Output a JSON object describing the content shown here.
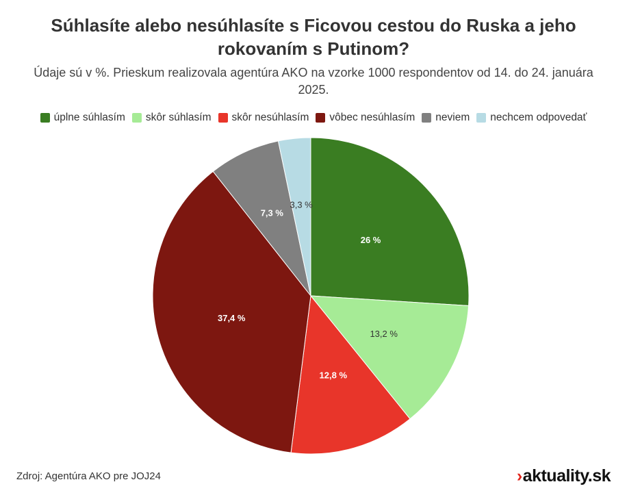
{
  "title": "Súhlasíte alebo nesúhlasíte s Ficovou cestou do Ruska a jeho rokovaním s Putinom?",
  "subtitle": "Údaje sú v %. Prieskum realizovala agentúra AKO na vzorke 1000 respondentov od 14. do 24. januára 2025.",
  "source": "Zdroj: Agentúra AKO pre JOJ24",
  "brand": {
    "mark": "›",
    "name": "aktuality.sk"
  },
  "chart_data": {
    "type": "pie",
    "title": "Súhlasíte alebo nesúhlasíte s Ficovou cestou do Ruska a jeho rokovaním s Putinom?",
    "legend_position": "top",
    "categories": [
      "úplne súhlasím",
      "skôr súhlasím",
      "skôr nesúhlasím",
      "vôbec nesúhlasím",
      "neviem",
      "nechcem odpovedať"
    ],
    "values": [
      26,
      13.2,
      12.8,
      37.4,
      7.3,
      3.3
    ],
    "labels": [
      "26 %",
      "13,2 %",
      "12,8 %",
      "37,4 %",
      "7,3 %",
      "3,3 %"
    ],
    "colors": [
      "#3a7d22",
      "#a6eb96",
      "#e8352a",
      "#7d1710",
      "#808080",
      "#b7dbe4"
    ]
  }
}
